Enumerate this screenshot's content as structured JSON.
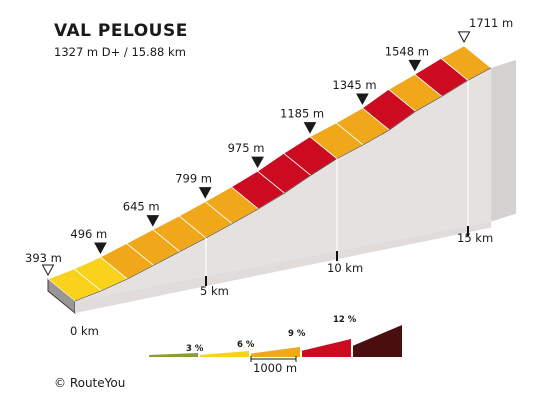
{
  "header": {
    "title": "VAL PELOUSE",
    "subtitle": "1327 m D+ / 15.88 km"
  },
  "footer": {
    "copyright": "© RouteYou"
  },
  "colors": {
    "grade_0_3": "#8b9a3c",
    "grade_3_6": "#f9d21b",
    "grade_6_9": "#f0a81a",
    "grade_9_12": "#cc0a20",
    "grade_12_plus": "#4a0e0e",
    "wall": "#e5e1de",
    "base_front": "#e0dcd9"
  },
  "legend": {
    "grades": [
      "3 %",
      "6 %",
      "9 %",
      "12 %"
    ],
    "scale_label": "1000 m"
  },
  "chart_data": {
    "type": "area",
    "title": "VAL PELOUSE",
    "subtitle": "1327 m D+ / 15.88 km",
    "xlabel": "",
    "ylabel": "",
    "x_unit": "km",
    "y_unit": "m",
    "xlim": [
      0,
      15.88
    ],
    "x_ticks": [
      {
        "value": 0,
        "label": "0 km"
      },
      {
        "value": 5,
        "label": "5 km"
      },
      {
        "value": 10,
        "label": "10 km"
      },
      {
        "value": 15,
        "label": "15 km"
      }
    ],
    "altitude_labels": [
      "393 m",
      "496 m",
      "645 m",
      "799 m",
      "975 m",
      "1185 m",
      "1345 m",
      "1548 m",
      "1711 m"
    ],
    "points": [
      {
        "x": 0,
        "y": 393
      },
      {
        "x": 1,
        "y": 437
      },
      {
        "x": 2,
        "y": 496
      },
      {
        "x": 3,
        "y": 570
      },
      {
        "x": 4,
        "y": 645
      },
      {
        "x": 5,
        "y": 719
      },
      {
        "x": 6,
        "y": 799
      },
      {
        "x": 7,
        "y": 883
      },
      {
        "x": 8,
        "y": 975
      },
      {
        "x": 9,
        "y": 1085
      },
      {
        "x": 10,
        "y": 1185
      },
      {
        "x": 11,
        "y": 1260
      },
      {
        "x": 12,
        "y": 1345
      },
      {
        "x": 13,
        "y": 1462
      },
      {
        "x": 14,
        "y": 1548
      },
      {
        "x": 15,
        "y": 1642
      },
      {
        "x": 15.88,
        "y": 1711
      }
    ],
    "segment_grades": [
      4.4,
      5.9,
      7.4,
      7.5,
      7.4,
      8.0,
      8.4,
      9.2,
      11.0,
      10.0,
      7.5,
      8.5,
      11.7,
      8.6,
      9.4,
      7.8
    ],
    "legend": [
      "3 %",
      "6 %",
      "9 %",
      "12 %"
    ]
  }
}
